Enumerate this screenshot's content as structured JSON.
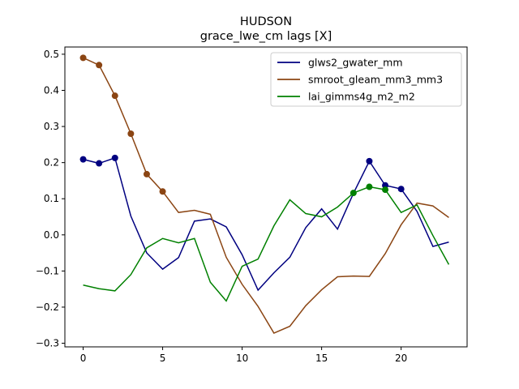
{
  "chart_data": {
    "type": "line",
    "title": "HUDSON",
    "subtitle": "grace_lwe_cm lags [X]",
    "xlabel": "",
    "ylabel": "",
    "xlim": [
      -1.15,
      24.15
    ],
    "ylim": [
      -0.31,
      0.52
    ],
    "xticks": [
      0,
      5,
      10,
      15,
      20
    ],
    "yticks": [
      -0.3,
      -0.2,
      -0.1,
      0.0,
      0.1,
      0.2,
      0.3,
      0.4,
      0.5
    ],
    "grid": false,
    "legend": "top-right",
    "x": [
      0,
      1,
      2,
      3,
      4,
      5,
      6,
      7,
      8,
      9,
      10,
      11,
      12,
      13,
      14,
      15,
      16,
      17,
      18,
      19,
      20,
      21,
      22,
      23
    ],
    "series": [
      {
        "name": "glws2_gwater_mm",
        "color": "#000080",
        "values": [
          0.209,
          0.198,
          0.213,
          0.052,
          -0.05,
          -0.095,
          -0.063,
          0.038,
          0.044,
          0.022,
          -0.055,
          -0.153,
          -0.105,
          -0.062,
          0.02,
          0.072,
          0.016,
          0.115,
          0.204,
          0.137,
          0.127,
          0.065,
          -0.032,
          -0.02
        ],
        "markers": [
          0,
          1,
          2,
          18,
          19,
          20
        ]
      },
      {
        "name": "smroot_gleam_mm3_mm3",
        "color": "#8B4513",
        "values": [
          0.49,
          0.47,
          0.385,
          0.28,
          0.168,
          0.12,
          0.062,
          0.068,
          0.057,
          -0.062,
          -0.137,
          -0.198,
          -0.272,
          -0.253,
          -0.196,
          -0.152,
          -0.116,
          -0.114,
          -0.115,
          -0.052,
          0.028,
          0.088,
          0.08,
          0.048
        ],
        "markers": [
          0,
          1,
          2,
          3,
          4,
          5
        ]
      },
      {
        "name": "lai_gimms4g_m2_m2",
        "color": "#008000",
        "values": [
          -0.139,
          -0.149,
          -0.155,
          -0.11,
          -0.036,
          -0.01,
          -0.022,
          -0.01,
          -0.131,
          -0.183,
          -0.087,
          -0.067,
          0.025,
          0.097,
          0.059,
          0.05,
          0.077,
          0.116,
          0.133,
          0.125,
          0.062,
          0.083,
          -0.002,
          -0.082
        ],
        "markers": [
          17,
          18,
          19
        ]
      }
    ]
  }
}
